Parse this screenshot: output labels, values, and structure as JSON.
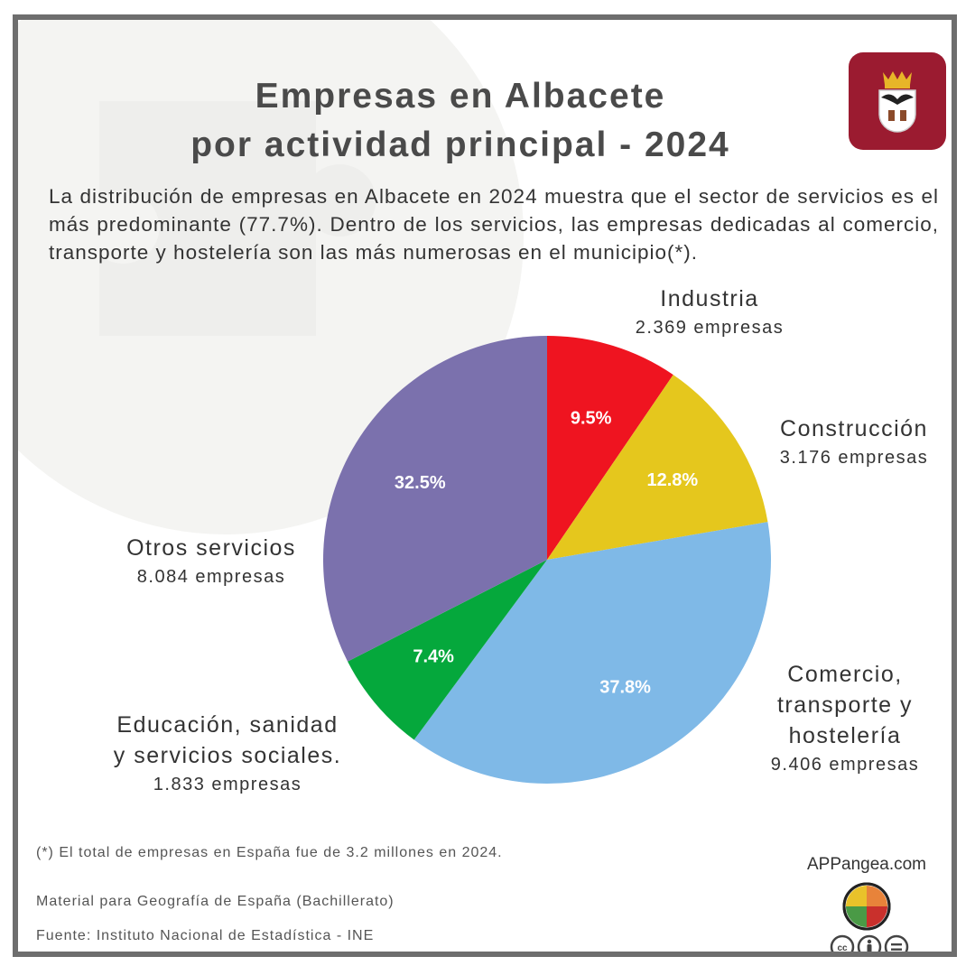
{
  "header": {
    "title_line1": "Empresas en Albacete",
    "title_line2": "por actividad principal - 2024"
  },
  "intro": "La distribución de empresas en Albacete en 2024 muestra que el sector de servicios es el más predominante (77.7%). Dentro de los servicios, las empresas dedicadas al comercio, transporte y hostelería son las más numerosas en el municipio(*).",
  "chart_data": {
    "type": "pie",
    "slices": [
      {
        "label_lines": [
          "Industria"
        ],
        "count_label": "2.369 empresas",
        "value": 2369,
        "percent": "9.5%",
        "color": "#ef1420"
      },
      {
        "label_lines": [
          "Construcción"
        ],
        "count_label": "3.176 empresas",
        "value": 3176,
        "percent": "12.8%",
        "color": "#e5c71d"
      },
      {
        "label_lines": [
          "Comercio,",
          "transporte y",
          "hostelería"
        ],
        "count_label": "9.406 empresas",
        "value": 9406,
        "percent": "37.8%",
        "color": "#7fb9e7"
      },
      {
        "label_lines": [
          "Educación, sanidad",
          "y servicios sociales."
        ],
        "count_label": "1.833 empresas",
        "value": 1833,
        "percent": "7.4%",
        "color": "#05a83c"
      },
      {
        "label_lines": [
          "Otros servicios"
        ],
        "count_label": "8.084 empresas",
        "value": 8084,
        "percent": "32.5%",
        "color": "#7b71ad"
      }
    ]
  },
  "footer": {
    "note": "(*) El total de empresas en España fue de 3.2 millones en 2024.",
    "material": "Material para Geografía de España (Bachillerato)",
    "source": "Fuente: Instituto Nacional de Estadística - INE",
    "site": "APPangea.com"
  },
  "icons": {
    "shield": "albacete-coat-of-arms-icon",
    "logo": "puzzle-logo-icon",
    "license": "creative-commons-by-nd-icon"
  }
}
